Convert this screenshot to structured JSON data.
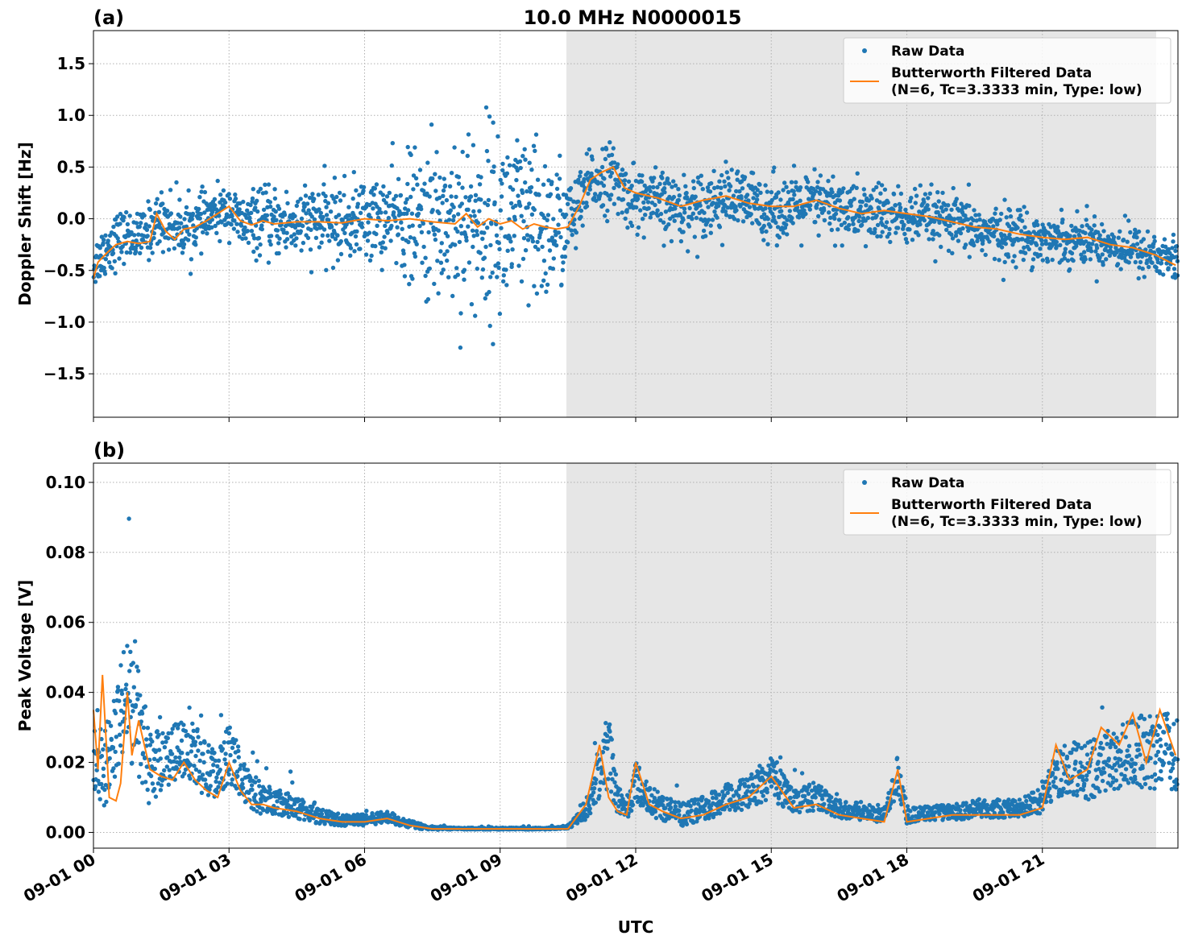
{
  "figure": {
    "title": "10.0 MHz N0000015",
    "xlabel": "UTC",
    "xtick_labels": [
      "09-01 00",
      "09-01 03",
      "09-01 06",
      "09-01 09",
      "09-01 12",
      "09-01 15",
      "09-01 18",
      "09-01 21"
    ],
    "shaded_span": [
      "09-01 10:27",
      "09-01 23:40"
    ],
    "colors": {
      "raw": "#1f77b4",
      "filtered": "#ff7f0e",
      "shade": "#e6e6e6",
      "grid": "#b0b0b0"
    }
  },
  "legend": {
    "raw_label": "Raw Data",
    "filtered_label_line1": "Butterworth Filtered Data",
    "filtered_label_line2": "(N=6, Tc=3.3333 min, Type: low)"
  },
  "chart_data": [
    {
      "type": "scatter",
      "panel_label": "(a)",
      "ylabel": "Doppler Shift [Hz]",
      "xlim": [
        0,
        24
      ],
      "ylim": [
        -1.92,
        1.82
      ],
      "yticks": [
        -1.5,
        -1.0,
        -0.5,
        0.0,
        0.5,
        1.0,
        1.5
      ],
      "ytick_labels": [
        "−1.5",
        "−1.0",
        "−0.5",
        "0.0",
        "0.5",
        "1.0",
        "1.5"
      ],
      "grid": true,
      "legend_position": "top-right",
      "series": [
        {
          "name": "Raw Data",
          "kind": "points",
          "x": [
            0.0,
            0.25,
            0.5,
            0.75,
            1.0,
            1.25,
            1.5,
            1.75,
            2.0,
            2.25,
            2.5,
            2.75,
            3.0,
            3.25,
            3.5,
            3.75,
            4.0,
            4.5,
            5.0,
            5.5,
            6.0,
            6.5,
            7.0,
            7.25,
            7.5,
            7.75,
            8.0,
            8.25,
            8.5,
            8.75,
            9.0,
            9.25,
            9.5,
            9.75,
            10.0,
            10.25,
            10.5,
            10.75,
            11.0,
            11.25,
            11.5,
            11.75,
            12.0,
            12.5,
            13.0,
            13.5,
            14.0,
            14.5,
            15.0,
            15.5,
            16.0,
            16.5,
            17.0,
            17.5,
            18.0,
            18.5,
            19.0,
            19.5,
            20.0,
            20.5,
            21.0,
            21.5,
            22.0,
            22.5,
            23.0,
            23.5,
            23.95
          ],
          "y": [
            -0.45,
            -0.3,
            -0.2,
            -0.15,
            -0.2,
            -0.1,
            0.0,
            -0.05,
            -0.1,
            -0.05,
            0.0,
            0.05,
            0.1,
            -0.05,
            -0.05,
            -0.02,
            -0.05,
            -0.05,
            -0.02,
            -0.05,
            0.0,
            0.0,
            0.0,
            -0.05,
            -0.05,
            0.0,
            0.0,
            0.0,
            -0.05,
            0.0,
            -0.05,
            0.0,
            -0.05,
            -0.1,
            -0.1,
            -0.05,
            -0.05,
            0.1,
            0.35,
            0.4,
            0.4,
            0.25,
            0.2,
            0.15,
            0.1,
            0.15,
            0.2,
            0.15,
            0.1,
            0.1,
            0.15,
            0.1,
            0.05,
            0.05,
            0.0,
            0.0,
            -0.05,
            -0.1,
            -0.15,
            -0.15,
            -0.2,
            -0.2,
            -0.2,
            -0.25,
            -0.3,
            -0.35,
            -0.4
          ],
          "spread": [
            0.3,
            0.35,
            0.35,
            0.3,
            0.3,
            0.35,
            0.35,
            0.4,
            0.35,
            0.35,
            0.3,
            0.3,
            0.3,
            0.35,
            0.4,
            0.4,
            0.4,
            0.45,
            0.45,
            0.5,
            0.5,
            0.55,
            0.8,
            0.9,
            1.0,
            1.1,
            1.15,
            1.15,
            1.2,
            1.2,
            1.2,
            1.2,
            1.1,
            1.1,
            1.0,
            0.9,
            0.6,
            0.45,
            0.4,
            0.45,
            0.4,
            0.4,
            0.4,
            0.4,
            0.4,
            0.4,
            0.4,
            0.4,
            0.4,
            0.4,
            0.4,
            0.4,
            0.4,
            0.4,
            0.35,
            0.35,
            0.35,
            0.35,
            0.35,
            0.35,
            0.3,
            0.3,
            0.3,
            0.3,
            0.3,
            0.3,
            0.3
          ]
        },
        {
          "name": "Butterworth Filtered Data\n(N=6, Tc=3.3333 min, Type: low)",
          "kind": "line",
          "x": [
            0.0,
            0.1,
            0.3,
            0.5,
            0.75,
            1.0,
            1.25,
            1.4,
            1.6,
            1.8,
            2.0,
            2.25,
            2.5,
            2.75,
            3.0,
            3.25,
            3.5,
            3.75,
            4.0,
            4.5,
            5.0,
            5.5,
            6.0,
            6.5,
            7.0,
            7.5,
            8.0,
            8.25,
            8.5,
            8.75,
            9.0,
            9.25,
            9.5,
            9.75,
            10.0,
            10.25,
            10.5,
            10.75,
            11.0,
            11.25,
            11.5,
            11.75,
            12.0,
            12.5,
            13.0,
            13.5,
            14.0,
            14.5,
            15.0,
            15.5,
            16.0,
            16.5,
            17.0,
            17.5,
            18.0,
            18.5,
            19.0,
            19.5,
            20.0,
            20.5,
            21.0,
            21.5,
            22.0,
            22.5,
            23.0,
            23.5,
            23.95
          ],
          "y": [
            -0.58,
            -0.42,
            -0.33,
            -0.25,
            -0.22,
            -0.24,
            -0.22,
            0.05,
            -0.12,
            -0.2,
            -0.1,
            -0.08,
            -0.02,
            0.05,
            0.12,
            -0.02,
            -0.06,
            -0.02,
            -0.05,
            -0.03,
            -0.03,
            -0.04,
            0.0,
            -0.02,
            0.0,
            -0.03,
            -0.05,
            0.05,
            -0.08,
            0.0,
            -0.05,
            -0.02,
            -0.1,
            -0.05,
            -0.08,
            -0.1,
            -0.08,
            0.12,
            0.38,
            0.45,
            0.5,
            0.3,
            0.25,
            0.2,
            0.12,
            0.18,
            0.22,
            0.15,
            0.12,
            0.12,
            0.18,
            0.1,
            0.05,
            0.08,
            0.05,
            0.02,
            -0.03,
            -0.08,
            -0.1,
            -0.15,
            -0.18,
            -0.2,
            -0.18,
            -0.25,
            -0.28,
            -0.35,
            -0.45
          ]
        }
      ]
    },
    {
      "type": "scatter",
      "panel_label": "(b)",
      "ylabel": "Peak Voltage [V]",
      "xlim": [
        0,
        24
      ],
      "ylim": [
        -0.0045,
        0.1055
      ],
      "yticks": [
        0.0,
        0.02,
        0.04,
        0.06,
        0.08,
        0.1
      ],
      "ytick_labels": [
        "0.00",
        "0.02",
        "0.04",
        "0.06",
        "0.08",
        "0.10"
      ],
      "grid": true,
      "legend_position": "top-right",
      "series": [
        {
          "name": "Raw Data",
          "kind": "points",
          "x": [
            0.0,
            0.25,
            0.5,
            0.75,
            1.0,
            1.25,
            1.5,
            1.75,
            2.0,
            2.25,
            2.5,
            2.75,
            3.0,
            3.25,
            3.5,
            3.75,
            4.0,
            4.5,
            5.0,
            5.5,
            6.0,
            6.5,
            7.0,
            7.5,
            8.0,
            8.5,
            9.0,
            9.5,
            10.0,
            10.5,
            10.9,
            11.2,
            11.4,
            11.6,
            11.8,
            12.0,
            12.3,
            12.6,
            13.0,
            13.5,
            14.0,
            14.5,
            15.0,
            15.5,
            16.0,
            16.5,
            17.0,
            17.5,
            17.8,
            18.0,
            18.5,
            19.0,
            19.5,
            20.0,
            20.5,
            21.0,
            21.3,
            21.6,
            22.0,
            22.5,
            23.0,
            23.5,
            23.95
          ],
          "y": [
            0.02,
            0.015,
            0.025,
            0.035,
            0.025,
            0.015,
            0.018,
            0.02,
            0.022,
            0.02,
            0.015,
            0.015,
            0.02,
            0.015,
            0.01,
            0.008,
            0.008,
            0.006,
            0.004,
            0.003,
            0.003,
            0.004,
            0.002,
            0.001,
            0.001,
            0.001,
            0.001,
            0.001,
            0.001,
            0.0015,
            0.005,
            0.015,
            0.02,
            0.008,
            0.006,
            0.012,
            0.008,
            0.006,
            0.004,
            0.006,
            0.008,
            0.01,
            0.014,
            0.008,
            0.009,
            0.006,
            0.005,
            0.004,
            0.015,
            0.004,
            0.005,
            0.005,
            0.006,
            0.006,
            0.006,
            0.008,
            0.015,
            0.015,
            0.015,
            0.018,
            0.02,
            0.02,
            0.02
          ],
          "spread": [
            0.02,
            0.02,
            0.025,
            0.03,
            0.03,
            0.02,
            0.015,
            0.015,
            0.015,
            0.015,
            0.015,
            0.012,
            0.015,
            0.012,
            0.01,
            0.008,
            0.007,
            0.006,
            0.004,
            0.003,
            0.003,
            0.003,
            0.002,
            0.0008,
            0.0005,
            0.0005,
            0.0005,
            0.0005,
            0.0005,
            0.001,
            0.004,
            0.015,
            0.02,
            0.008,
            0.006,
            0.012,
            0.008,
            0.007,
            0.006,
            0.006,
            0.008,
            0.008,
            0.012,
            0.007,
            0.007,
            0.005,
            0.004,
            0.004,
            0.01,
            0.004,
            0.004,
            0.004,
            0.005,
            0.005,
            0.005,
            0.007,
            0.012,
            0.015,
            0.015,
            0.016,
            0.018,
            0.02,
            0.02
          ]
        },
        {
          "name": "Butterworth Filtered Data\n(N=6, Tc=3.3333 min, Type: low)",
          "kind": "line",
          "x": [
            0.0,
            0.1,
            0.2,
            0.35,
            0.5,
            0.6,
            0.75,
            0.85,
            1.0,
            1.25,
            1.5,
            1.75,
            2.0,
            2.25,
            2.5,
            2.75,
            3.0,
            3.25,
            3.5,
            3.75,
            4.0,
            4.5,
            5.0,
            5.5,
            6.0,
            6.5,
            7.0,
            7.5,
            8.0,
            8.5,
            9.0,
            9.5,
            10.0,
            10.5,
            10.9,
            11.2,
            11.4,
            11.6,
            11.8,
            12.0,
            12.3,
            12.6,
            13.0,
            13.5,
            14.0,
            14.5,
            15.0,
            15.5,
            16.0,
            16.5,
            17.0,
            17.5,
            17.8,
            18.0,
            18.5,
            19.0,
            19.5,
            20.0,
            20.5,
            21.0,
            21.3,
            21.6,
            22.0,
            22.3,
            22.7,
            23.0,
            23.3,
            23.6,
            23.95
          ],
          "y": [
            0.035,
            0.018,
            0.045,
            0.01,
            0.009,
            0.014,
            0.04,
            0.022,
            0.032,
            0.018,
            0.016,
            0.015,
            0.02,
            0.015,
            0.012,
            0.01,
            0.02,
            0.012,
            0.008,
            0.008,
            0.007,
            0.006,
            0.004,
            0.003,
            0.003,
            0.004,
            0.002,
            0.001,
            0.001,
            0.001,
            0.001,
            0.001,
            0.001,
            0.001,
            0.008,
            0.025,
            0.01,
            0.006,
            0.005,
            0.02,
            0.008,
            0.006,
            0.004,
            0.005,
            0.008,
            0.01,
            0.016,
            0.007,
            0.008,
            0.005,
            0.004,
            0.003,
            0.018,
            0.003,
            0.004,
            0.005,
            0.005,
            0.005,
            0.005,
            0.007,
            0.025,
            0.015,
            0.018,
            0.03,
            0.025,
            0.034,
            0.02,
            0.035,
            0.022
          ]
        }
      ]
    }
  ]
}
